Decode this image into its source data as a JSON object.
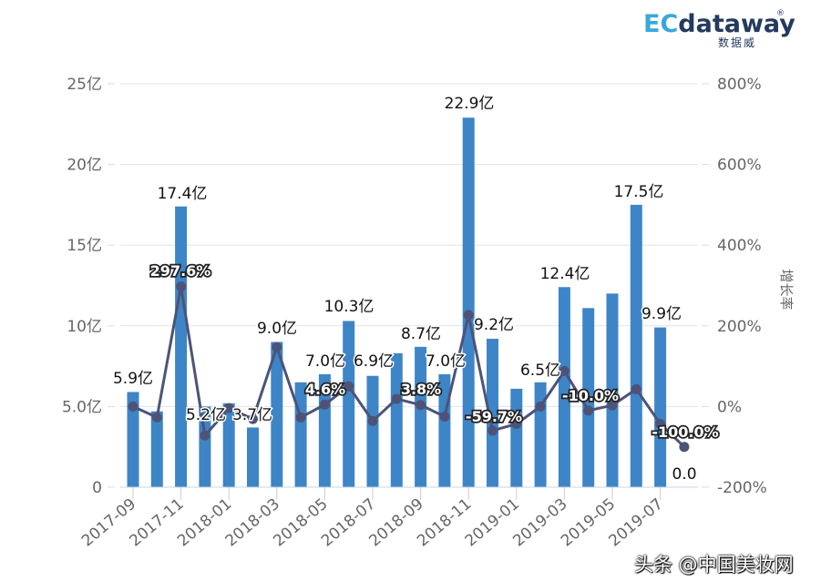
{
  "logo": {
    "brand_prefix": "EC",
    "brand_suffix": "dataway",
    "registered": "®",
    "subtitle": "数据威"
  },
  "watermark": "头条 @中国美妆网",
  "colors": {
    "bar": "#3d85c6",
    "line": "#4d5378",
    "grid": "#e3e3e3",
    "axis_text": "#666666",
    "label_text": "#111111"
  },
  "chart_data": {
    "type": "bar+line",
    "title": "",
    "xlabel": "",
    "ylabel_left": "",
    "ylabel_right": "增长率",
    "left_axis": {
      "ticks": [
        "0",
        "5.0亿",
        "10亿",
        "15亿",
        "20亿",
        "25亿"
      ],
      "range": [
        0,
        25
      ],
      "unit": "亿"
    },
    "right_axis": {
      "ticks": [
        "-200%",
        "0%",
        "200%",
        "400%",
        "600%",
        "800%"
      ],
      "range": [
        -200,
        800
      ],
      "unit": "%"
    },
    "grid": true,
    "legend": "none",
    "categories": [
      "2017-09",
      "2017-10",
      "2017-11",
      "2017-12",
      "2018-01",
      "2018-02",
      "2018-03",
      "2018-04",
      "2018-05",
      "2018-06",
      "2018-07",
      "2018-08",
      "2018-09",
      "2018-10",
      "2018-11",
      "2018-12",
      "2019-01",
      "2019-02",
      "2019-03",
      "2019-04",
      "2019-05",
      "2019-06",
      "2019-07",
      "2019-08"
    ],
    "x_tick_labels": [
      "2017-09",
      "2017-11",
      "2018-01",
      "2018-03",
      "2018-05",
      "2018-07",
      "2018-09",
      "2018-11",
      "2019-01",
      "2019-03",
      "2019-05",
      "2019-07"
    ],
    "series": [
      {
        "name": "销售额",
        "type": "bar",
        "axis": "left",
        "values": [
          5.9,
          4.7,
          17.4,
          5.0,
          5.2,
          3.7,
          9.0,
          6.5,
          7.0,
          10.3,
          6.9,
          8.3,
          8.7,
          7.0,
          22.9,
          9.2,
          6.1,
          6.5,
          12.4,
          11.1,
          12.0,
          17.5,
          9.9,
          0.0
        ]
      },
      {
        "name": "增长率",
        "type": "line",
        "axis": "right",
        "values": [
          0,
          -27,
          297.6,
          -72,
          -4,
          -31,
          147,
          -27,
          4.6,
          50,
          -36,
          19,
          3.8,
          -25,
          227,
          -59.7,
          -43,
          0,
          88,
          -10.0,
          3,
          43,
          -43,
          -100.0
        ]
      }
    ],
    "bar_labels": [
      {
        "index": 0,
        "text": "5.9亿"
      },
      {
        "index": 2,
        "text": "17.4亿"
      },
      {
        "index": 4,
        "text": "5.2亿"
      },
      {
        "index": 5,
        "text": "3.7亿"
      },
      {
        "index": 6,
        "text": "9.0亿"
      },
      {
        "index": 8,
        "text": "7.0亿"
      },
      {
        "index": 9,
        "text": "10.3亿"
      },
      {
        "index": 10,
        "text": "6.9亿"
      },
      {
        "index": 12,
        "text": "8.7亿"
      },
      {
        "index": 13,
        "text": "7.0亿"
      },
      {
        "index": 14,
        "text": "22.9亿"
      },
      {
        "index": 15,
        "text": "9.2亿"
      },
      {
        "index": 17,
        "text": "6.5亿"
      },
      {
        "index": 18,
        "text": "12.4亿"
      },
      {
        "index": 21,
        "text": "17.5亿"
      },
      {
        "index": 22,
        "text": "9.9亿"
      },
      {
        "index": 23,
        "text": "0.0"
      }
    ],
    "line_labels": [
      {
        "index": 2,
        "text": "297.6%"
      },
      {
        "index": 8,
        "text": "4.6%"
      },
      {
        "index": 12,
        "text": "3.8%"
      },
      {
        "index": 15,
        "text": "-59.7%"
      },
      {
        "index": 19,
        "text": "-10.0%"
      },
      {
        "index": 23,
        "text": "-100.0%"
      }
    ]
  }
}
